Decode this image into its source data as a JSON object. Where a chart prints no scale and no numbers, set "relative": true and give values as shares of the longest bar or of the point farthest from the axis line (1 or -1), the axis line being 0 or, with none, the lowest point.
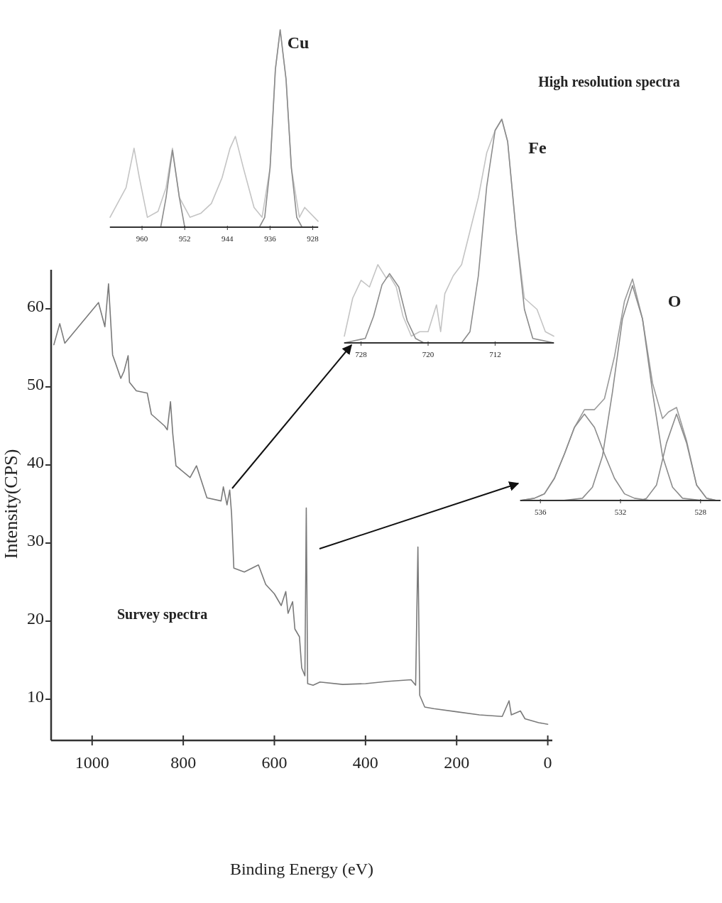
{
  "chart_data": [
    {
      "type": "line",
      "xlabel": "Binding Energy (eV)",
      "ylabel": "Intensity(CPS)",
      "annotations": [
        "Survey spectra"
      ],
      "xlim": [
        1090,
        -10
      ],
      "xticks": [
        1000,
        800,
        600,
        400,
        200,
        0
      ],
      "ylim": [
        5,
        65
      ],
      "yticks": [
        10,
        20,
        30,
        40,
        50,
        60
      ],
      "series": [
        {
          "color": "#7a7a7a",
          "x": [
            1084,
            1071,
            1060,
            986,
            972,
            964,
            955,
            937,
            930,
            921,
            918,
            903,
            879,
            870,
            841,
            835,
            828,
            823,
            816,
            785,
            771,
            748,
            717,
            712,
            704,
            698,
            694,
            689,
            666,
            635,
            619,
            600,
            585,
            575,
            570,
            560,
            555,
            545,
            540,
            533,
            530,
            527,
            515,
            500,
            450,
            400,
            350,
            300,
            290,
            285,
            281,
            270,
            250,
            200,
            150,
            100,
            85,
            80,
            60,
            50,
            20,
            0
          ],
          "values": [
            55.4,
            58.1,
            55.6,
            60.8,
            57.7,
            63.2,
            54.1,
            51.1,
            52,
            54,
            50.6,
            49.5,
            49.2,
            46.5,
            45,
            44.5,
            48.1,
            44,
            39.9,
            38.4,
            39.9,
            35.8,
            35.4,
            37.2,
            34.9,
            36.8,
            33.8,
            26.8,
            26.3,
            27.2,
            24.7,
            23.5,
            22,
            23.8,
            21,
            22.5,
            19,
            18,
            14,
            13,
            34.5,
            12,
            11.8,
            12.2,
            11.9,
            12,
            12.3,
            12.5,
            11.8,
            29.5,
            10.5,
            9,
            8.8,
            8.4,
            8,
            7.8,
            9.8,
            8,
            8.5,
            7.5,
            7,
            6.8
          ]
        }
      ]
    },
    {
      "type": "line",
      "title": "Cu",
      "annotations": [
        "High resolution spectra"
      ],
      "relative": true,
      "tick_labels": "x",
      "xlim": [
        966,
        927
      ],
      "xticks": [
        960,
        952,
        944,
        936,
        928
      ],
      "series": [
        {
          "color": "#c4c4c4",
          "x": [
            966,
            963,
            961.5,
            960.5,
            959,
            957,
            955.5,
            954.3,
            953,
            951,
            949,
            947,
            945,
            943.5,
            942.5,
            941,
            939,
            937.5,
            936,
            935,
            934.1,
            933,
            932,
            930.5,
            929.5,
            927
          ],
          "values": [
            0.05,
            0.2,
            0.4,
            0.25,
            0.05,
            0.08,
            0.2,
            0.4,
            0.15,
            0.05,
            0.07,
            0.12,
            0.25,
            0.4,
            0.46,
            0.3,
            0.1,
            0.05,
            0.3,
            0.8,
            1,
            0.75,
            0.3,
            0.05,
            0.1,
            0.03
          ]
        },
        {
          "color": "#8c8c8c",
          "x": [
            966,
            956.5,
            955.5,
            954.3,
            953,
            952,
            938,
            937,
            936,
            935,
            934.1,
            933,
            932,
            931,
            930,
            927
          ],
          "values": [
            0,
            0,
            0.15,
            0.39,
            0.15,
            0,
            0,
            0.05,
            0.3,
            0.8,
            1,
            0.75,
            0.3,
            0.05,
            0,
            0
          ]
        }
      ]
    },
    {
      "type": "line",
      "title": "Fe",
      "relative": true,
      "tick_labels": "x",
      "xlim": [
        730,
        705
      ],
      "xticks": [
        728,
        720,
        712
      ],
      "series": [
        {
          "color": "#c4c4c4",
          "x": [
            730,
            729,
            728,
            727,
            726,
            725,
            724.6,
            723.8,
            723,
            722,
            721,
            720,
            719,
            718.5,
            718,
            717,
            716,
            715,
            714,
            713,
            712,
            711.2,
            710.5,
            709.5,
            708.5,
            707,
            706,
            705
          ],
          "values": [
            0.03,
            0.2,
            0.28,
            0.25,
            0.35,
            0.29,
            0.3,
            0.25,
            0.12,
            0.03,
            0.05,
            0.05,
            0.17,
            0.05,
            0.22,
            0.3,
            0.35,
            0.5,
            0.65,
            0.85,
            0.95,
            1,
            0.9,
            0.5,
            0.2,
            0.15,
            0.05,
            0.03
          ]
        },
        {
          "color": "#8c8c8c",
          "x": [
            730,
            727.5,
            726.5,
            725.5,
            724.6,
            723.5,
            722.5,
            721.5,
            720.5,
            716,
            715,
            714,
            713,
            712,
            711.2,
            710.5,
            709.5,
            708.5,
            707.5,
            705
          ],
          "values": [
            0,
            0.02,
            0.12,
            0.26,
            0.31,
            0.25,
            0.1,
            0.02,
            0,
            0,
            0.05,
            0.3,
            0.7,
            0.95,
            1,
            0.9,
            0.5,
            0.15,
            0.02,
            0
          ]
        }
      ]
    },
    {
      "type": "line",
      "title": "O",
      "relative": true,
      "tick_labels": "x",
      "xlim": [
        537,
        527
      ],
      "xticks": [
        536,
        532,
        528
      ],
      "series": [
        {
          "color": "#9a9a9a",
          "x": [
            537,
            536.3,
            535.8,
            535.3,
            534.8,
            534.3,
            533.8,
            533.3,
            532.8,
            532.3,
            531.8,
            531.4,
            530.9,
            530.4,
            529.9,
            529.6,
            529.2,
            528.7,
            528.2,
            527.7,
            527.2
          ],
          "values": [
            0,
            0.01,
            0.03,
            0.1,
            0.21,
            0.33,
            0.41,
            0.41,
            0.46,
            0.65,
            0.9,
            1,
            0.82,
            0.53,
            0.37,
            0.4,
            0.42,
            0.27,
            0.07,
            0.01,
            0
          ]
        },
        {
          "color": "#8c8c8c",
          "x": [
            534.9,
            533.9,
            533.4,
            532.9,
            532.4,
            531.9,
            531.4,
            530.9,
            530.4,
            529.9,
            529.4,
            528.9,
            527.9
          ],
          "values": [
            0,
            0.01,
            0.06,
            0.2,
            0.49,
            0.82,
            0.97,
            0.82,
            0.49,
            0.2,
            0.06,
            0.01,
            0
          ]
        },
        {
          "color": "#8c8c8c",
          "x": [
            537,
            536.3,
            535.8,
            535.3,
            534.8,
            534.3,
            533.8,
            533.3,
            532.8,
            532.3,
            531.8,
            531.3,
            530.5
          ],
          "values": [
            0,
            0.01,
            0.03,
            0.1,
            0.21,
            0.33,
            0.39,
            0.33,
            0.21,
            0.1,
            0.03,
            0.01,
            0
          ]
        },
        {
          "color": "#8c8c8c",
          "x": [
            531,
            530.7,
            530.2,
            529.7,
            529.2,
            528.7,
            528.2,
            527.7,
            527.2
          ],
          "values": [
            0,
            0.01,
            0.07,
            0.26,
            0.39,
            0.26,
            0.07,
            0.01,
            0
          ]
        }
      ]
    }
  ]
}
